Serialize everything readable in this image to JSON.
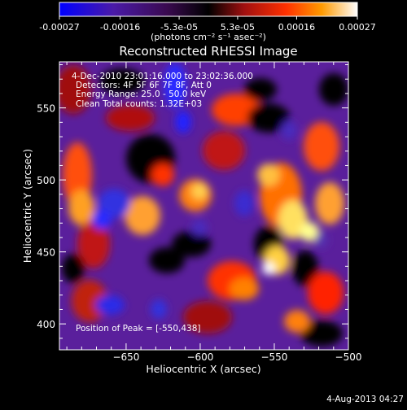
{
  "colorbar": {
    "tick_labels": [
      "-0.00027",
      "-0.00016",
      "-5.3e-05",
      "5.3e-05",
      "0.00016",
      "0.00027"
    ],
    "unit_label": "(photons cm⁻² s⁻¹ asec⁻²)",
    "range": [
      -0.00027,
      0.00027
    ]
  },
  "chart_data": {
    "type": "heatmap",
    "title": "Reconstructed RHESSI Image",
    "xlabel": "Heliocentric X (arcsec)",
    "ylabel": "Heliocentric Y (arcsec)",
    "xlim": [
      -695,
      -500
    ],
    "ylim": [
      382,
      582
    ],
    "x_ticks": [
      -650,
      -600,
      -550,
      -500
    ],
    "y_ticks": [
      400,
      450,
      500,
      550
    ],
    "annotations": [
      "4-Dec-2010 23:01:16.000 to 23:02:36.000",
      "Detectors: 4F 5F 6F 7F 8F, Att 0",
      "Energy Range: 25.0 - 50.0 keV",
      "Clean     Total counts: 1.32E+03"
    ],
    "peak_label": "Position of Peak = [-550,438]",
    "peak_position": [
      -550,
      438
    ],
    "colormap": [
      "#0000ff",
      "#5a2aa0",
      "#000000",
      "#c01010",
      "#ff8000",
      "#ffff66",
      "#ffffff"
    ],
    "grid": false
  },
  "footer": {
    "timestamp": "4-Aug-2013 04:27"
  }
}
